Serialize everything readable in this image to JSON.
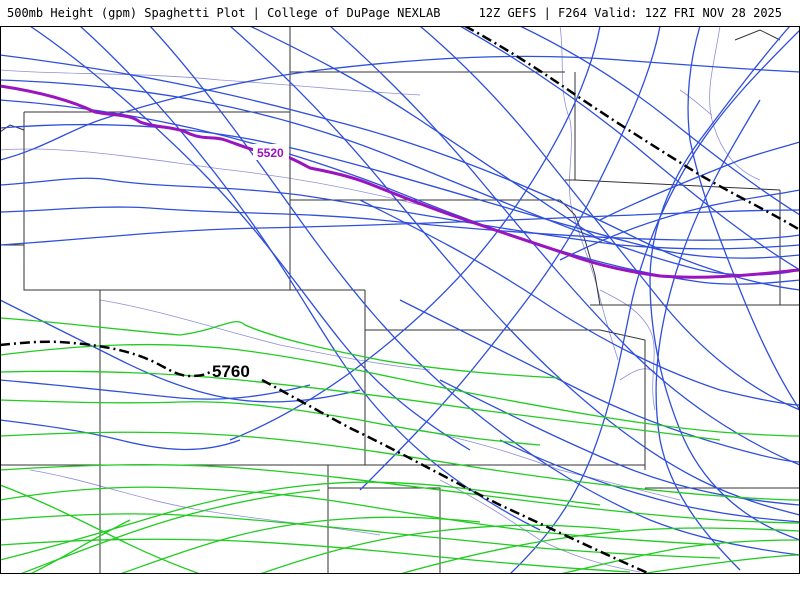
{
  "header": {
    "left_title": "500mb Height (gpm) Spaghetti Plot | College of DuPage NEXLAB",
    "right_title": "12Z GEFS | F264 Valid: 12Z FRI NOV 28 2025"
  },
  "map": {
    "colors": {
      "background": "#ffffff",
      "border": "#000000",
      "state_lines": "#333333",
      "rivers_roads": "#7b7bd6",
      "blue_member": "#2f4fdc",
      "green_member": "#1fcc1f",
      "purple_mean": "#9a14bf",
      "black_mean": "#000000"
    },
    "contour_labels": {
      "purple": "5520",
      "black": "5760"
    }
  }
}
